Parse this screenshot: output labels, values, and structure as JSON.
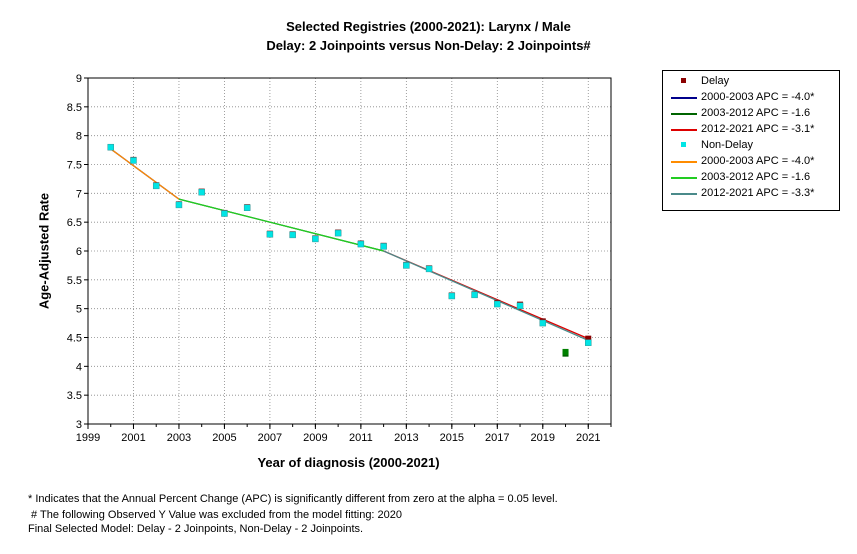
{
  "chart_data": {
    "type": "scatter",
    "title": "Selected Registries (2000-2021): Larynx / Male",
    "subtitle": "Delay: 2 Joinpoints  versus  Non-Delay: 2 Joinpoints#",
    "xlabel": "Year of diagnosis (2000-2021)",
    "ylabel": "Age-Adjusted Rate",
    "xlim": [
      1999,
      2022
    ],
    "ylim": [
      3,
      9
    ],
    "x_ticks": [
      "1999",
      "2001",
      "2003",
      "2005",
      "2007",
      "2009",
      "2011",
      "2013",
      "2015",
      "2017",
      "2019",
      "2021"
    ],
    "y_ticks": [
      "3",
      "3.5",
      "4",
      "4.5",
      "5",
      "5.5",
      "6",
      "6.5",
      "7",
      "7.5",
      "8",
      "8.5",
      "9"
    ],
    "grid": true,
    "legend_position": "right",
    "series": [
      {
        "name": "Delay",
        "kind": "points",
        "color": "#8b0000",
        "x": [
          2000,
          2001,
          2002,
          2003,
          2004,
          2005,
          2006,
          2007,
          2008,
          2009,
          2010,
          2011,
          2012,
          2013,
          2014,
          2015,
          2016,
          2017,
          2018,
          2019,
          2020,
          2021
        ],
        "y": [
          7.8,
          7.58,
          7.14,
          6.81,
          7.03,
          6.66,
          6.76,
          6.3,
          6.29,
          6.22,
          6.32,
          6.13,
          6.09,
          5.76,
          5.7,
          5.23,
          5.25,
          5.1,
          5.07,
          4.78,
          4.22,
          4.48
        ]
      },
      {
        "name": "Non-Delay",
        "kind": "points",
        "color": "#00e5e5",
        "x": [
          2000,
          2001,
          2002,
          2003,
          2004,
          2005,
          2006,
          2007,
          2008,
          2009,
          2010,
          2011,
          2012,
          2013,
          2014,
          2015,
          2016,
          2017,
          2018,
          2019,
          2020,
          2021
        ],
        "y": [
          7.8,
          7.57,
          7.13,
          6.8,
          7.02,
          6.65,
          6.75,
          6.29,
          6.28,
          6.21,
          6.31,
          6.12,
          6.08,
          5.75,
          5.69,
          5.22,
          5.24,
          5.08,
          5.05,
          4.75,
          4.25,
          4.41
        ]
      },
      {
        "name": "2000-2003 APC  =  -4.0*",
        "kind": "line",
        "color": "#00008b",
        "x": [
          2000,
          2003
        ],
        "y": [
          7.77,
          6.9
        ]
      },
      {
        "name": "2003-2012 APC  =  -1.6",
        "kind": "line",
        "color": "#006400",
        "x": [
          2003,
          2012
        ],
        "y": [
          6.9,
          6.0
        ]
      },
      {
        "name": "2012-2021 APC  =  -3.1*",
        "kind": "line",
        "color": "#dd0000",
        "x": [
          2012,
          2021
        ],
        "y": [
          6.0,
          4.48
        ]
      },
      {
        "name": "2000-2003 APC  =  -4.0*",
        "kind": "line",
        "color": "#ff8c00",
        "x": [
          2000,
          2003
        ],
        "y": [
          7.77,
          6.9
        ]
      },
      {
        "name": "2003-2012 APC  =  -1.6",
        "kind": "line",
        "color": "#22cc22",
        "x": [
          2003,
          2012
        ],
        "y": [
          6.9,
          6.0
        ]
      },
      {
        "name": "2012-2021 APC  =  -3.3*",
        "kind": "line",
        "color": "#4a8a8a",
        "x": [
          2012,
          2021
        ],
        "y": [
          6.0,
          4.45
        ]
      }
    ],
    "excluded_points": [
      {
        "x": 2020,
        "y": 4.22,
        "color": "#006400"
      },
      {
        "x": 2020,
        "y": 4.25,
        "color": "#008000"
      }
    ]
  },
  "legend": {
    "items": [
      {
        "label": "Delay",
        "type": "marker",
        "color": "#8b0000"
      },
      {
        "label": "2000-2003 APC  =  -4.0*",
        "type": "line",
        "color": "#00008b"
      },
      {
        "label": "2003-2012 APC  =  -1.6",
        "type": "line",
        "color": "#006400"
      },
      {
        "label": "2012-2021 APC  =  -3.1*",
        "type": "line",
        "color": "#dd0000"
      },
      {
        "label": "Non-Delay",
        "type": "marker",
        "color": "#00e5e5"
      },
      {
        "label": "2000-2003 APC  =  -4.0*",
        "type": "line",
        "color": "#ff8c00"
      },
      {
        "label": "2003-2012 APC  =  -1.6",
        "type": "line",
        "color": "#22cc22"
      },
      {
        "label": "2012-2021 APC  =  -3.3*",
        "type": "line",
        "color": "#4a8a8a"
      }
    ]
  },
  "footnotes": {
    "line1": "* Indicates that the Annual Percent Change (APC) is significantly different from zero at the alpha = 0.05 level.",
    "line2": " # The following Observed Y Value was excluded from the model fitting: 2020",
    "line3": "Final Selected Model: Delay - 2 Joinpoints, Non-Delay - 2 Joinpoints."
  }
}
